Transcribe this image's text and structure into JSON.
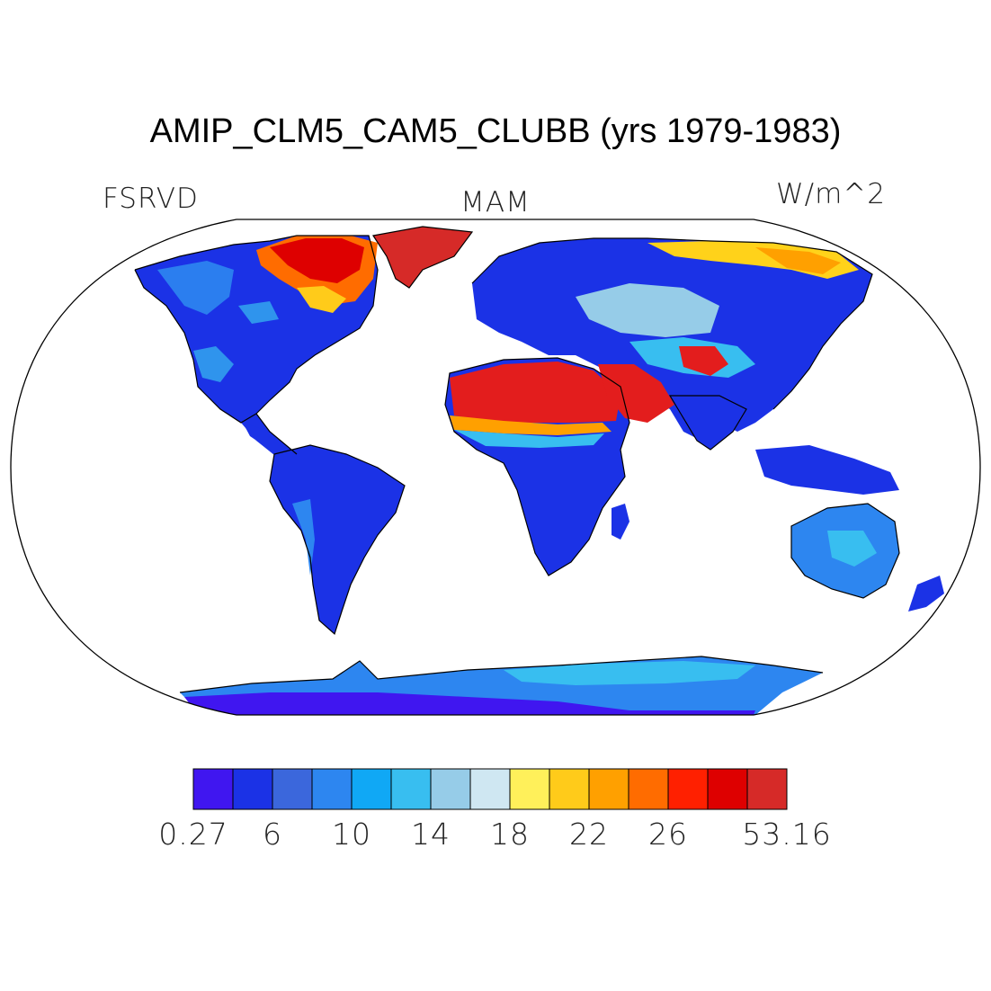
{
  "title": "AMIP_CLM5_CAM5_CLUBB (yrs 1979-1983)",
  "left_label": "FSRVD",
  "center_label": "MAM",
  "right_label": "W/m^2",
  "map": {
    "projection": "robinson",
    "variable": "FSRVD",
    "season": "MAM",
    "units": "W/m^2",
    "regions": [
      {
        "name": "Canadian Arctic Archipelago",
        "color": "#ee1100"
      },
      {
        "name": "Greenland",
        "color": "#d62a28"
      },
      {
        "name": "Sahara",
        "color": "#e31d1d"
      },
      {
        "name": "Arabian Peninsula",
        "color": "#e31d1d"
      },
      {
        "name": "Taklamakan",
        "color": "#e31d1d"
      },
      {
        "name": "Siberian Arctic coast",
        "color": "#ffd21a"
      },
      {
        "name": "South America",
        "color": "#1b32e6"
      },
      {
        "name": "Central Africa",
        "color": "#1b32e6"
      },
      {
        "name": "Australia",
        "color": "#2f80f0"
      },
      {
        "name": "Antarctica",
        "color": "#2060e8"
      }
    ]
  },
  "colorbar": {
    "colors": [
      "#4016f0",
      "#1b32e6",
      "#3b67dc",
      "#2d86f0",
      "#10a8f5",
      "#38bef0",
      "#96cce8",
      "#cfe7f2",
      "#fff05a",
      "#ffcb1a",
      "#ffa000",
      "#ff6c00",
      "#ff2000",
      "#de0000",
      "#d62a28"
    ],
    "tick_labels": [
      "0.27",
      "6",
      "10",
      "14",
      "18",
      "22",
      "26",
      "53.16"
    ],
    "tick_boundaries": [
      0,
      2,
      4,
      6,
      8,
      10,
      12,
      15
    ]
  }
}
